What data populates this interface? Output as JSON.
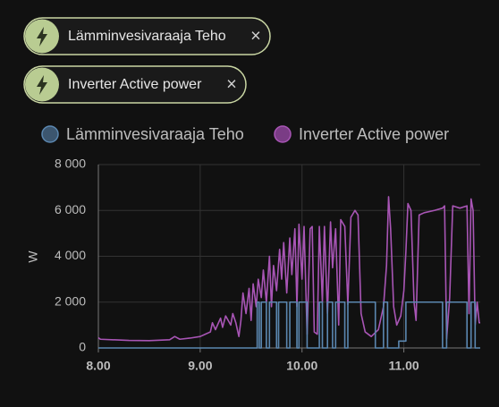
{
  "filters": [
    "Lämminvesivaraaja Teho",
    "Inverter Active power"
  ],
  "chart_data": {
    "type": "line",
    "ylabel": "W",
    "xlim": [
      8,
      11.75
    ],
    "xticks": [
      {
        "value": 8,
        "label": "8.00"
      },
      {
        "value": 9,
        "label": "9.00"
      },
      {
        "value": 10,
        "label": "10.00"
      },
      {
        "value": 11,
        "label": "11.00"
      }
    ],
    "ylim": [
      0,
      8000
    ],
    "yticks": [
      0,
      {
        "value": 2000,
        "label": "2 000"
      },
      {
        "value": 4000,
        "label": "4 000"
      },
      {
        "value": 6000,
        "label": "6 000"
      },
      {
        "value": 8000,
        "label": "8 000"
      }
    ],
    "grid": true,
    "series": [
      {
        "name": "Lämminvesivaraaja Teho",
        "color": "#5b87b0",
        "fill": "#3c566f",
        "x": [
          8.0,
          9.56,
          9.56,
          9.58,
          9.58,
          9.6,
          9.6,
          9.65,
          9.65,
          9.68,
          9.68,
          9.75,
          9.75,
          9.77,
          9.77,
          9.85,
          9.85,
          9.88,
          9.88,
          9.95,
          9.95,
          9.97,
          9.97,
          10.05,
          10.05,
          10.17,
          10.17,
          10.2,
          10.2,
          10.25,
          10.25,
          10.3,
          10.3,
          10.33,
          10.33,
          10.42,
          10.42,
          10.45,
          10.45,
          10.72,
          10.72,
          10.8,
          10.8,
          10.84,
          10.84,
          10.95,
          10.95,
          11.02,
          11.02,
          11.38,
          11.38,
          11.42,
          11.42,
          11.62,
          11.62,
          11.66,
          11.66,
          11.7,
          11.7,
          11.75
        ],
        "values": [
          0,
          0,
          2000,
          2000,
          0,
          0,
          2000,
          2000,
          0,
          0,
          2000,
          2000,
          0,
          0,
          2000,
          2000,
          0,
          0,
          2000,
          2000,
          0,
          0,
          2000,
          2000,
          0,
          0,
          2000,
          2000,
          0,
          0,
          2000,
          2000,
          0,
          0,
          2000,
          2000,
          0,
          0,
          2000,
          2000,
          0,
          0,
          2000,
          2000,
          0,
          0,
          300,
          300,
          2000,
          2000,
          0,
          0,
          2000,
          2000,
          0,
          0,
          2000,
          2000,
          0,
          0
        ]
      },
      {
        "name": "Inverter Active power",
        "color": "#a855b5",
        "fill": "#7a3c85",
        "x": [
          8.0,
          8.02,
          8.3,
          8.5,
          8.7,
          8.75,
          8.8,
          8.9,
          9.0,
          9.05,
          9.1,
          9.12,
          9.15,
          9.2,
          9.22,
          9.25,
          9.3,
          9.32,
          9.35,
          9.38,
          9.4,
          9.42,
          9.45,
          9.48,
          9.5,
          9.52,
          9.55,
          9.57,
          9.6,
          9.62,
          9.65,
          9.68,
          9.7,
          9.72,
          9.75,
          9.78,
          9.8,
          9.82,
          9.85,
          9.88,
          9.9,
          9.93,
          9.95,
          9.97,
          10.0,
          10.02,
          10.05,
          10.08,
          10.1,
          10.12,
          10.15,
          10.17,
          10.2,
          10.22,
          10.25,
          10.28,
          10.3,
          10.33,
          10.36,
          10.38,
          10.42,
          10.45,
          10.48,
          10.52,
          10.55,
          10.58,
          10.62,
          10.68,
          10.75,
          10.8,
          10.83,
          10.85,
          10.87,
          10.9,
          10.93,
          10.97,
          11.0,
          11.02,
          11.04,
          11.07,
          11.1,
          11.12,
          11.15,
          11.2,
          11.3,
          11.38,
          11.4,
          11.42,
          11.45,
          11.48,
          11.55,
          11.62,
          11.64,
          11.66,
          11.68,
          11.7,
          11.72,
          11.74,
          11.75
        ],
        "values": [
          450,
          380,
          330,
          320,
          360,
          500,
          380,
          430,
          500,
          600,
          700,
          1100,
          800,
          1300,
          900,
          1400,
          1000,
          1500,
          1100,
          500,
          1200,
          2400,
          1500,
          2600,
          1200,
          2800,
          1800,
          3000,
          2200,
          3400,
          2000,
          4000,
          1800,
          3600,
          2500,
          4300,
          3000,
          4600,
          2400,
          4800,
          3200,
          5200,
          1800,
          5400,
          3000,
          5300,
          600,
          5200,
          5300,
          700,
          600,
          5300,
          2000,
          5300,
          1500,
          5500,
          3500,
          5200,
          1000,
          5600,
          5300,
          1900,
          5700,
          6000,
          5800,
          1500,
          700,
          500,
          800,
          1800,
          3600,
          6600,
          5200,
          1800,
          1000,
          1400,
          2500,
          4200,
          6300,
          6000,
          2000,
          1200,
          5800,
          5900,
          6000,
          6100,
          6200,
          400,
          2200,
          6200,
          6100,
          6200,
          1500,
          6500,
          6000,
          1000,
          2000,
          1100,
          1100
        ]
      }
    ]
  }
}
